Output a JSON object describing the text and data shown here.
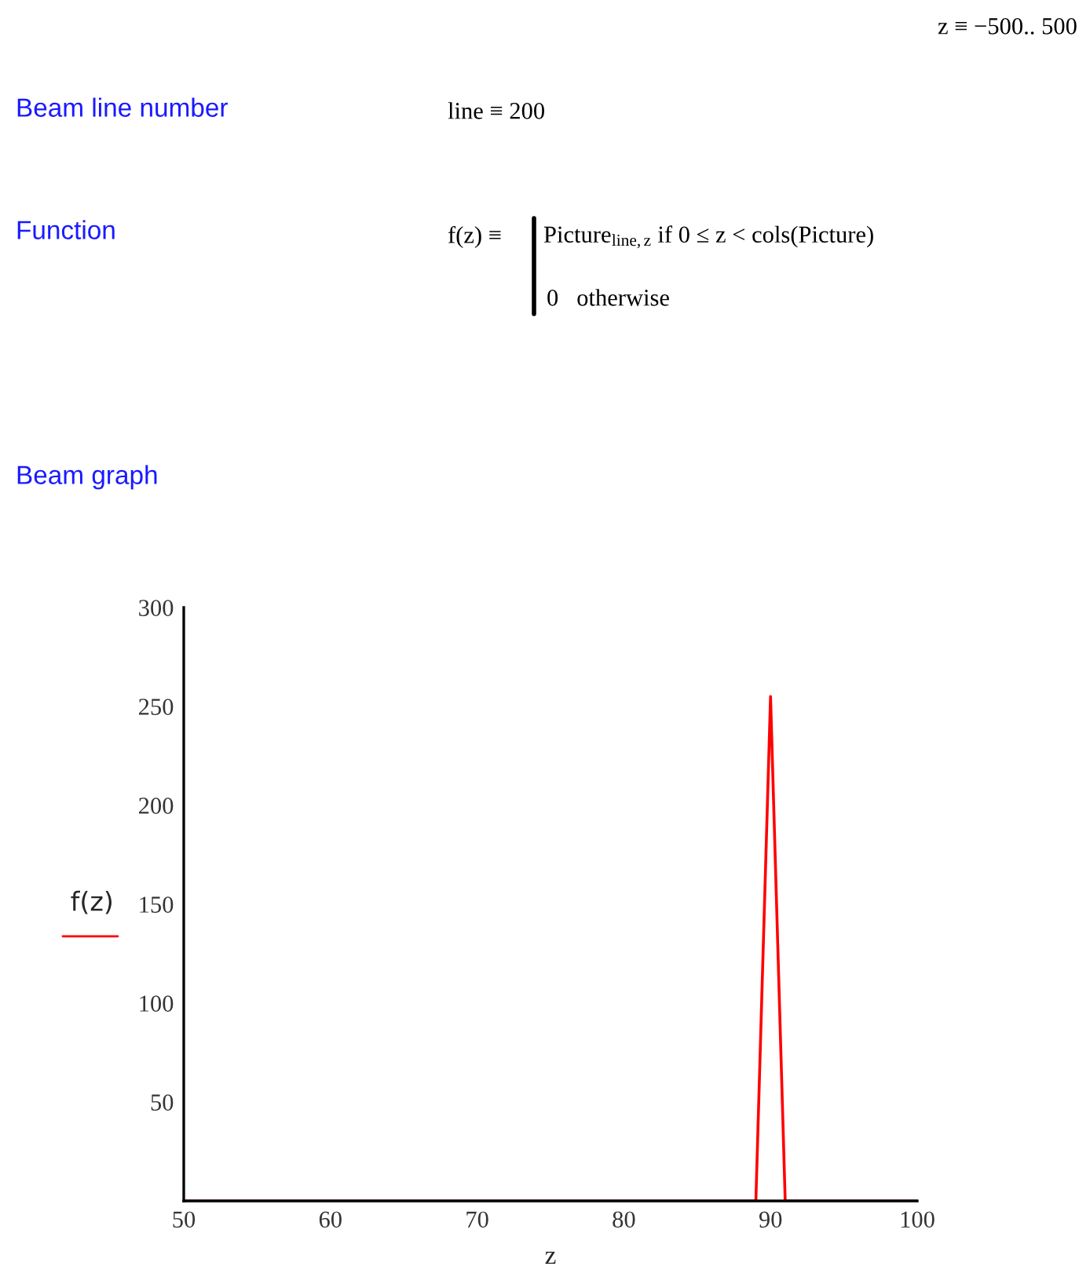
{
  "chart_data": {
    "type": "line",
    "xlabel": "z",
    "ylabel": "f(z)",
    "annotations": [
      "z ≡ −500.. 500",
      "Beam line number",
      "line ≡ 200",
      "Function",
      "f(z) ≡",
      "Picture$_{line,z}$ if 0 ≤ z < cols(Picture)",
      "0   otherwise",
      "Beam graph"
    ],
    "series": [
      {
        "color": "#ff0000",
        "x": [
          50,
          89,
          90,
          91,
          100
        ],
        "values": [
          0,
          0,
          255,
          0,
          0
        ]
      }
    ],
    "xlim": [
      50,
      100
    ],
    "xticks": [
      50,
      60,
      70,
      80,
      90,
      100
    ],
    "ylim": [
      0,
      300
    ],
    "yticks": [
      50,
      100,
      150,
      200,
      250,
      300
    ],
    "grid": false,
    "legend": false,
    "marker": "none",
    "line_style": "solid"
  }
}
